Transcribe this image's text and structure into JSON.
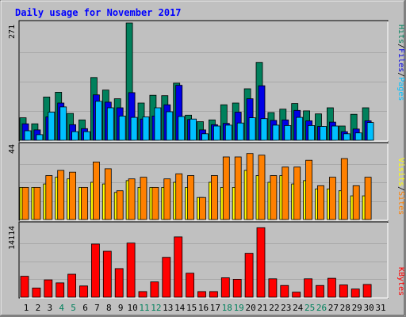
{
  "chart_data": {
    "type": "bar",
    "title": "Daily usage for November 2017",
    "colors": {
      "background": "#c0c0c0",
      "title": "#0000ff",
      "hits": "#00805c",
      "files": "#0000e6",
      "pages": "#00c0ff",
      "visits": "#ffff00",
      "sites": "#ff8000",
      "kbytes": "#ff0000",
      "weekend_label": "#00805c",
      "weekday_label": "#000000"
    },
    "categories": [
      "1",
      "2",
      "3",
      "4",
      "5",
      "6",
      "7",
      "8",
      "9",
      "10",
      "11",
      "12",
      "13",
      "14",
      "15",
      "16",
      "17",
      "18",
      "19",
      "20",
      "21",
      "22",
      "23",
      "24",
      "25",
      "26",
      "27",
      "28",
      "29",
      "30",
      "31"
    ],
    "weekend_days": [
      "4",
      "5",
      "11",
      "12",
      "18",
      "19",
      "25",
      "26"
    ],
    "panels": [
      {
        "id": "top",
        "ymax_label": "271",
        "ymax": 271,
        "legend": [
          {
            "text": "Hits",
            "color": "#00805c"
          },
          {
            "text": "/",
            "color": "#000000"
          },
          {
            "text": "Files",
            "color": "#0000e6"
          },
          {
            "text": "/",
            "color": "#000000"
          },
          {
            "text": "Pages",
            "color": "#00c0ff"
          }
        ],
        "series": [
          {
            "name": "Hits",
            "color": "#00805c",
            "values": [
              52,
              38,
              100,
              111,
              62,
              47,
              145,
              116,
              96,
              271,
              86,
              104,
              103,
              132,
              58,
              43,
              47,
              82,
              86,
              119,
              180,
              64,
              72,
              85,
              68,
              61,
              75,
              33,
              60,
              75,
              0
            ]
          },
          {
            "name": "Files",
            "color": "#0000e6",
            "values": [
              38,
              24,
              54,
              86,
              36,
              27,
              105,
              88,
              75,
              110,
              49,
              56,
              82,
              127,
              48,
              24,
              36,
              39,
              65,
              96,
              126,
              46,
              47,
              69,
              45,
              32,
              42,
              20,
              26,
              45,
              0
            ]
          },
          {
            "name": "Pages",
            "color": "#00c0ff",
            "values": [
              22,
              13,
              65,
              77,
              20,
              20,
              90,
              75,
              56,
              53,
              54,
              75,
              66,
              55,
              49,
              15,
              33,
              35,
              40,
              52,
              50,
              35,
              34,
              53,
              34,
              32,
              33,
              15,
              17,
              41,
              0
            ]
          }
        ]
      },
      {
        "id": "middle",
        "ymax_label": "44",
        "ymax": 44,
        "legend": [
          {
            "text": "Visits",
            "color": "#ffff00"
          },
          {
            "text": "/",
            "color": "#000000"
          },
          {
            "text": "Sites",
            "color": "#ff8000"
          }
        ],
        "series": [
          {
            "name": "Visits",
            "color": "#ffff00",
            "values": [
              19,
              19,
              21,
              25,
              24,
              19,
              22,
              21,
              16,
              23,
              19,
              19,
              19,
              22,
              19,
              13,
              22,
              19,
              19,
              29,
              26,
              22,
              26,
              21,
              23,
              18,
              18,
              17,
              14,
              14,
              0
            ]
          },
          {
            "name": "Sites",
            "color": "#ff8000",
            "values": [
              19,
              19,
              26,
              29,
              28,
              19,
              34,
              30,
              17,
              24,
              25,
              19,
              24,
              27,
              26,
              13,
              26,
              37,
              37,
              39,
              38,
              26,
              31,
              31,
              35,
              20,
              25,
              36,
              20,
              25,
              0
            ]
          }
        ]
      },
      {
        "id": "bottom",
        "ymax_label": "14114",
        "ymax": 14114,
        "legend": [
          {
            "text": "KBytes",
            "color": "#ff0000"
          }
        ],
        "series": [
          {
            "name": "KBytes",
            "color": "#ff0000",
            "values": [
              4100,
              1800,
              3400,
              2800,
              4500,
              2200,
              10400,
              9000,
              5600,
              10600,
              1100,
              3000,
              7800,
              11800,
              4700,
              1100,
              1100,
              3800,
              3500,
              8600,
              13600,
              3600,
              2300,
              1000,
              3600,
              2300,
              3700,
              2400,
              1600,
              2500,
              0
            ]
          }
        ]
      }
    ]
  }
}
